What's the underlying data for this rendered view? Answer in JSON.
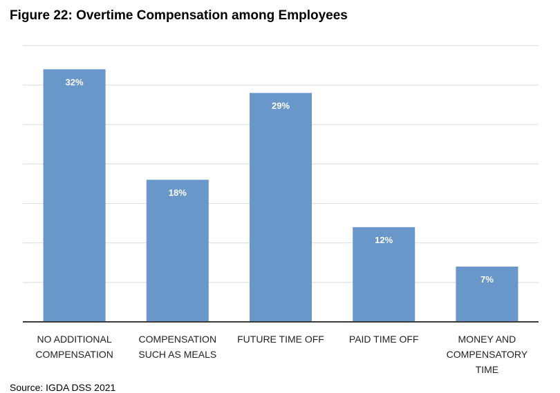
{
  "figure": {
    "title": "Figure 22: Overtime Compensation among Employees",
    "source": "Source: IGDA DSS 2021"
  },
  "chart_data": {
    "type": "bar",
    "title": "",
    "xlabel": "",
    "ylabel": "",
    "categories": [
      [
        "NO ADDITIONAL",
        "COMPENSATION"
      ],
      [
        "COMPENSATION",
        "SUCH AS MEALS"
      ],
      [
        "FUTURE TIME OFF"
      ],
      [
        "PAID TIME OFF"
      ],
      [
        "MONEY AND",
        "COMPENSATORY",
        "TIME"
      ]
    ],
    "values": [
      32,
      18,
      29,
      12,
      7
    ],
    "data_labels": [
      "32%",
      "18%",
      "29%",
      "12%",
      "7%"
    ],
    "unit": "%",
    "ylim": [
      0,
      35
    ],
    "grid": true,
    "legend": "none",
    "bar_color": "#6a97ca",
    "grid_color": "#d9d9d9",
    "axis_color": "#3a3a3a"
  }
}
